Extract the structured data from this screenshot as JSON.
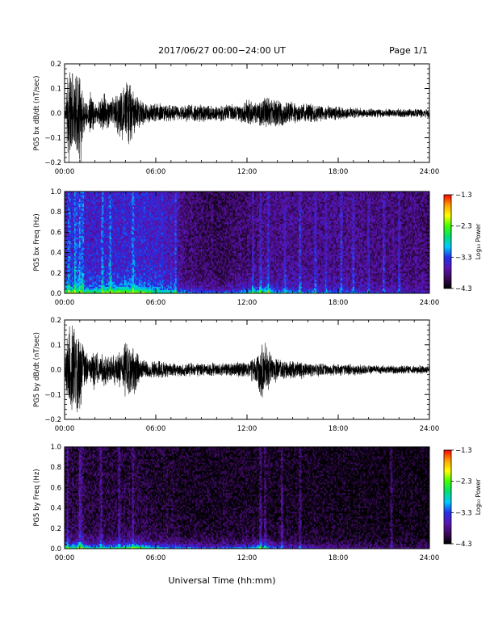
{
  "header": {
    "title": "2017/06/27  00:00−24:00 UT",
    "page": "Page 1/1"
  },
  "footer": {
    "xlabel": "Universal Time (hh:mm)"
  },
  "colors": {
    "trace": "#000000",
    "colormap": [
      "#000000",
      "#3a0a5a",
      "#5a14b4",
      "#2030e8",
      "#00c8ff",
      "#00e070",
      "#40ff00",
      "#ffff00",
      "#ffa000",
      "#ff0000"
    ]
  },
  "chart_data": [
    {
      "type": "line",
      "name": "bx-waveform",
      "ylabel": "PG5 bx dB/dt (nT/sec)",
      "xlim": [
        0,
        24
      ],
      "ylim": [
        -0.2,
        0.2
      ],
      "xticks": [
        "00:00",
        "06:00",
        "12:00",
        "18:00",
        "24:00"
      ],
      "yticks": [
        "−0.2",
        "−0.1",
        "0.0",
        "0.1",
        "0.2"
      ],
      "envelope": {
        "x_hours": [
          0,
          0.1,
          0.2,
          0.35,
          0.5,
          0.7,
          0.9,
          1.0,
          1.1,
          1.3,
          1.5,
          1.7,
          2.0,
          2.3,
          2.6,
          3.0,
          3.4,
          3.8,
          4.2,
          4.5,
          4.8,
          5.2,
          5.6,
          6.0,
          6.5,
          7.0,
          7.5,
          8.0,
          9.0,
          10.0,
          11.0,
          11.5,
          12.0,
          12.5,
          13.0,
          13.5,
          14.0,
          14.5,
          15.0,
          15.5,
          16.0,
          17.0,
          18.0,
          19.0,
          20.0,
          22.0,
          24.0
        ],
        "amplitude": [
          0.03,
          0.06,
          0.2,
          0.22,
          0.2,
          0.15,
          0.22,
          0.25,
          0.2,
          0.08,
          0.05,
          0.11,
          0.05,
          0.06,
          0.09,
          0.06,
          0.09,
          0.12,
          0.15,
          0.11,
          0.07,
          0.05,
          0.04,
          0.045,
          0.04,
          0.035,
          0.035,
          0.04,
          0.04,
          0.035,
          0.04,
          0.035,
          0.06,
          0.05,
          0.06,
          0.07,
          0.06,
          0.055,
          0.05,
          0.04,
          0.045,
          0.035,
          0.03,
          0.025,
          0.02,
          0.02,
          0.02
        ]
      }
    },
    {
      "type": "heatmap",
      "name": "bx-spectrogram",
      "ylabel": "PG5 bx Freq (Hz)",
      "xlim": [
        0,
        24
      ],
      "ylim": [
        0,
        1.0
      ],
      "xticks": [
        "00:00",
        "06:00",
        "12:00",
        "18:00",
        "24:00"
      ],
      "yticks": [
        "0.0",
        "0.2",
        "0.4",
        "0.6",
        "0.8",
        "1.0"
      ],
      "colorbar": {
        "label": "Log₁₀ Power",
        "ticks": [
          "−1.3",
          "−2.3",
          "−3.3",
          "−4.3"
        ],
        "range": [
          -4.3,
          -1.3
        ]
      },
      "background_profile": {
        "x_hours": [
          0,
          3,
          6,
          7,
          8,
          10,
          12,
          14,
          18,
          24
        ],
        "log_power": [
          -3.5,
          -3.5,
          -3.5,
          -3.6,
          -3.9,
          -4.0,
          -3.9,
          -3.8,
          -3.8,
          -3.9
        ]
      },
      "bursts_hours": [
        0.3,
        0.7,
        1.0,
        1.2,
        2.5,
        3.0,
        4.5,
        7.3,
        12.4,
        12.9,
        13.4,
        14.5,
        15.5,
        16.5,
        17.2,
        18.2,
        19.0,
        20.0,
        21.0,
        22.0
      ]
    },
    {
      "type": "line",
      "name": "by-waveform",
      "ylabel": "PG5 by dB/dt (nT/sec)",
      "xlim": [
        0,
        24
      ],
      "ylim": [
        -0.2,
        0.2
      ],
      "xticks": [
        "00:00",
        "06:00",
        "12:00",
        "18:00",
        "24:00"
      ],
      "yticks": [
        "−0.2",
        "−0.1",
        "0.0",
        "0.1",
        "0.2"
      ],
      "envelope": {
        "x_hours": [
          0,
          0.1,
          0.3,
          0.5,
          0.7,
          0.9,
          1.1,
          1.3,
          1.6,
          2.0,
          2.3,
          2.6,
          3.0,
          3.4,
          3.8,
          4.2,
          4.6,
          5.0,
          5.5,
          6.0,
          6.5,
          7.0,
          8.0,
          9.0,
          10.0,
          11.0,
          12.0,
          12.5,
          13.0,
          13.5,
          14.0,
          14.5,
          15.0,
          15.5,
          16.0,
          17.0,
          18.0,
          19.0,
          20.0,
          22.0,
          24.0
        ],
        "amplitude": [
          0.03,
          0.1,
          0.2,
          0.22,
          0.2,
          0.22,
          0.15,
          0.1,
          0.05,
          0.1,
          0.05,
          0.08,
          0.05,
          0.07,
          0.1,
          0.15,
          0.12,
          0.05,
          0.035,
          0.04,
          0.035,
          0.03,
          0.03,
          0.03,
          0.03,
          0.03,
          0.035,
          0.06,
          0.13,
          0.08,
          0.05,
          0.04,
          0.04,
          0.045,
          0.03,
          0.03,
          0.025,
          0.025,
          0.02,
          0.018,
          0.018
        ]
      }
    },
    {
      "type": "heatmap",
      "name": "by-spectrogram",
      "ylabel": "PG5 by Freq (Hz)",
      "xlim": [
        0,
        24
      ],
      "ylim": [
        0,
        1.0
      ],
      "xticks": [
        "00:00",
        "06:00",
        "12:00",
        "18:00",
        "24:00"
      ],
      "yticks": [
        "0.0",
        "0.2",
        "0.4",
        "0.6",
        "0.8",
        "1.0"
      ],
      "colorbar": {
        "label": "Log₁₀ Power",
        "ticks": [
          "−1.3",
          "−2.3",
          "−3.3",
          "−4.3"
        ],
        "range": [
          -4.3,
          -1.3
        ]
      },
      "background_profile": {
        "x_hours": [
          0,
          3,
          6,
          8,
          12,
          16,
          20,
          24
        ],
        "log_power": [
          -4.1,
          -4.1,
          -4.15,
          -4.2,
          -4.2,
          -4.2,
          -4.25,
          -4.25
        ]
      },
      "bursts_hours": [
        0.2,
        1.0,
        1.1,
        2.4,
        3.6,
        4.5,
        12.9,
        13.2,
        14.3,
        15.5,
        21.5
      ]
    }
  ]
}
